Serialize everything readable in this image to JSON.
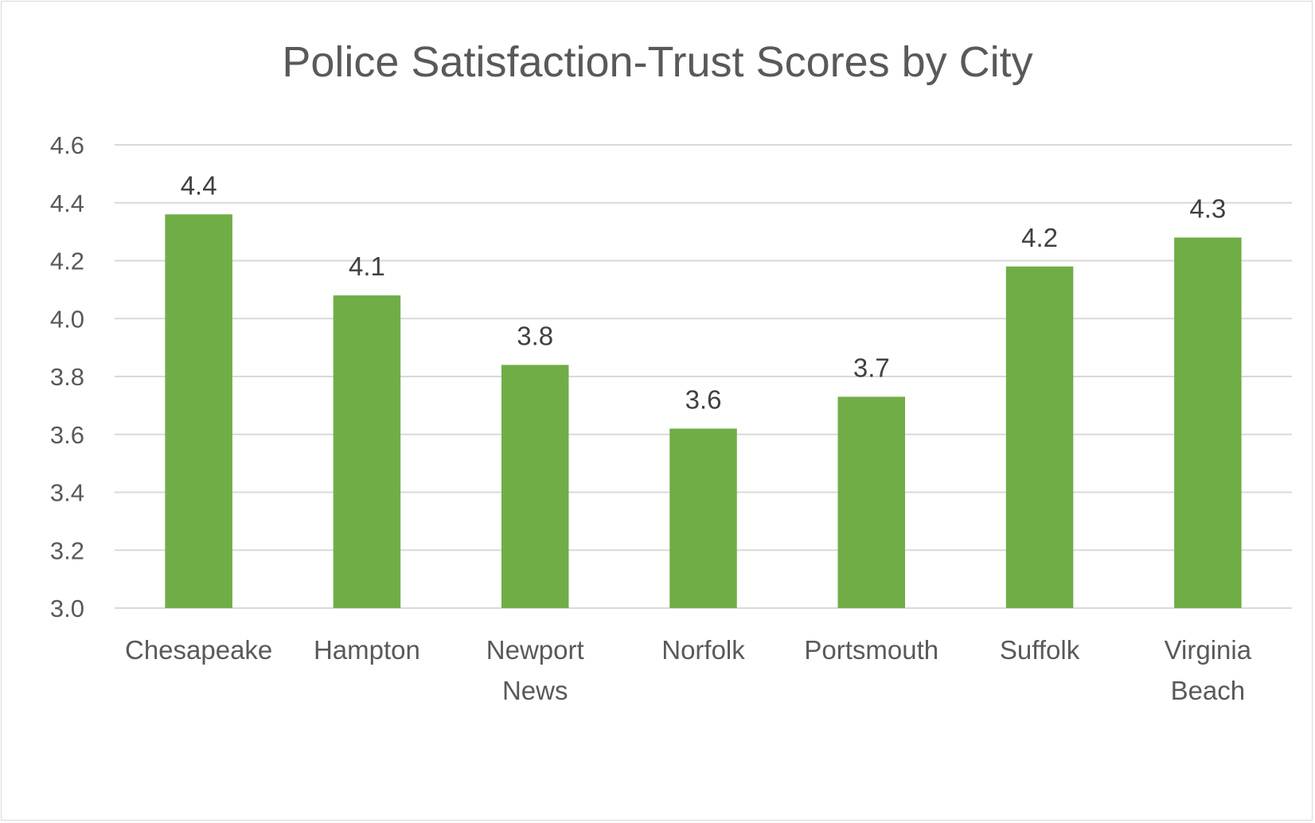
{
  "chart_data": {
    "type": "bar",
    "title": "Police Satisfaction-Trust Scores by City",
    "xlabel": "",
    "ylabel": "",
    "categories": [
      [
        "Chesapeake"
      ],
      [
        "Hampton"
      ],
      [
        "Newport",
        "News"
      ],
      [
        "Norfolk"
      ],
      [
        "Portsmouth"
      ],
      [
        "Suffolk"
      ],
      [
        "Virginia",
        "Beach"
      ]
    ],
    "values": [
      4.36,
      4.08,
      3.84,
      3.62,
      3.73,
      4.18,
      4.28
    ],
    "data_labels": [
      "4.4",
      "4.1",
      "3.8",
      "3.6",
      "3.7",
      "4.2",
      "4.3"
    ],
    "ylim": [
      3.0,
      4.6
    ],
    "yticks": [
      "3.0",
      "3.2",
      "3.4",
      "3.6",
      "3.8",
      "4.0",
      "4.2",
      "4.4",
      "4.6"
    ],
    "grid": true,
    "legend": "none",
    "bar_color": "#70AD47",
    "grid_color": "#D9D9D9"
  }
}
